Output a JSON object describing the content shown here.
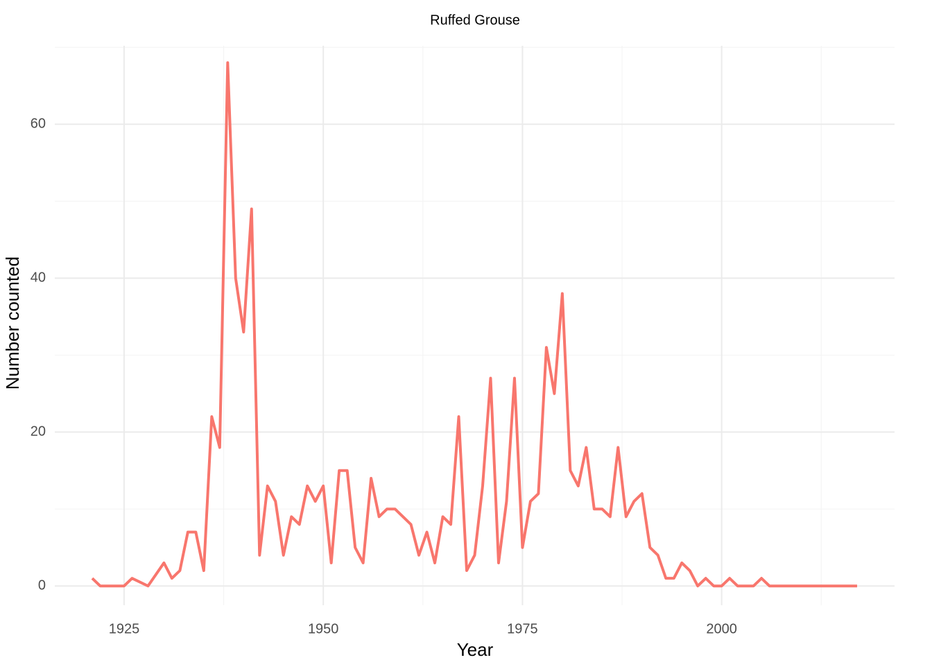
{
  "chart_data": {
    "type": "line",
    "title": "Ruffed Grouse",
    "x_label": "Year",
    "y_label": "Number counted",
    "x": [
      1921,
      1922,
      1923,
      1924,
      1925,
      1926,
      1927,
      1928,
      1929,
      1930,
      1931,
      1932,
      1933,
      1934,
      1935,
      1936,
      1937,
      1938,
      1939,
      1940,
      1941,
      1942,
      1943,
      1944,
      1945,
      1946,
      1947,
      1948,
      1949,
      1950,
      1951,
      1952,
      1953,
      1954,
      1955,
      1956,
      1957,
      1958,
      1959,
      1960,
      1961,
      1962,
      1963,
      1964,
      1965,
      1966,
      1967,
      1968,
      1969,
      1970,
      1971,
      1972,
      1973,
      1974,
      1975,
      1976,
      1977,
      1978,
      1979,
      1980,
      1981,
      1982,
      1983,
      1984,
      1985,
      1986,
      1987,
      1988,
      1989,
      1990,
      1991,
      1992,
      1993,
      1994,
      1995,
      1996,
      1997,
      1998,
      1999,
      2000,
      2001,
      2002,
      2003,
      2004,
      2005,
      2006,
      2007,
      2008,
      2009,
      2010,
      2011,
      2012,
      2013,
      2014,
      2015,
      2016,
      2017
    ],
    "series": [
      {
        "name": "Ruffed Grouse",
        "color": "#F8766D",
        "values": [
          1,
          0,
          0,
          0,
          0,
          1,
          0.5,
          0,
          1.5,
          3,
          1,
          2,
          7,
          7,
          2,
          22,
          18,
          68,
          40,
          33,
          49,
          4,
          13,
          11,
          4,
          9,
          8,
          13,
          11,
          13,
          3,
          15,
          15,
          5,
          3,
          14,
          9,
          10,
          10,
          9,
          8,
          4,
          7,
          3,
          9,
          8,
          22,
          2,
          4,
          13,
          27,
          3,
          11,
          27,
          5,
          11,
          12,
          31,
          25,
          38,
          15,
          13,
          18,
          10,
          10,
          9,
          18,
          9,
          11,
          12,
          5,
          4,
          1,
          1,
          3,
          2,
          0,
          1,
          0,
          0,
          1,
          0,
          0,
          0,
          1,
          0,
          0,
          0,
          0,
          0,
          0,
          0,
          0,
          0,
          0,
          0,
          0
        ]
      }
    ],
    "xlim": [
      1916.3,
      2021.7
    ],
    "ylim": [
      -2.5,
      70.2
    ],
    "xticks": [
      1925,
      1950,
      1975,
      2000
    ],
    "yticks": [
      0,
      20,
      40,
      60
    ],
    "grid": true
  }
}
